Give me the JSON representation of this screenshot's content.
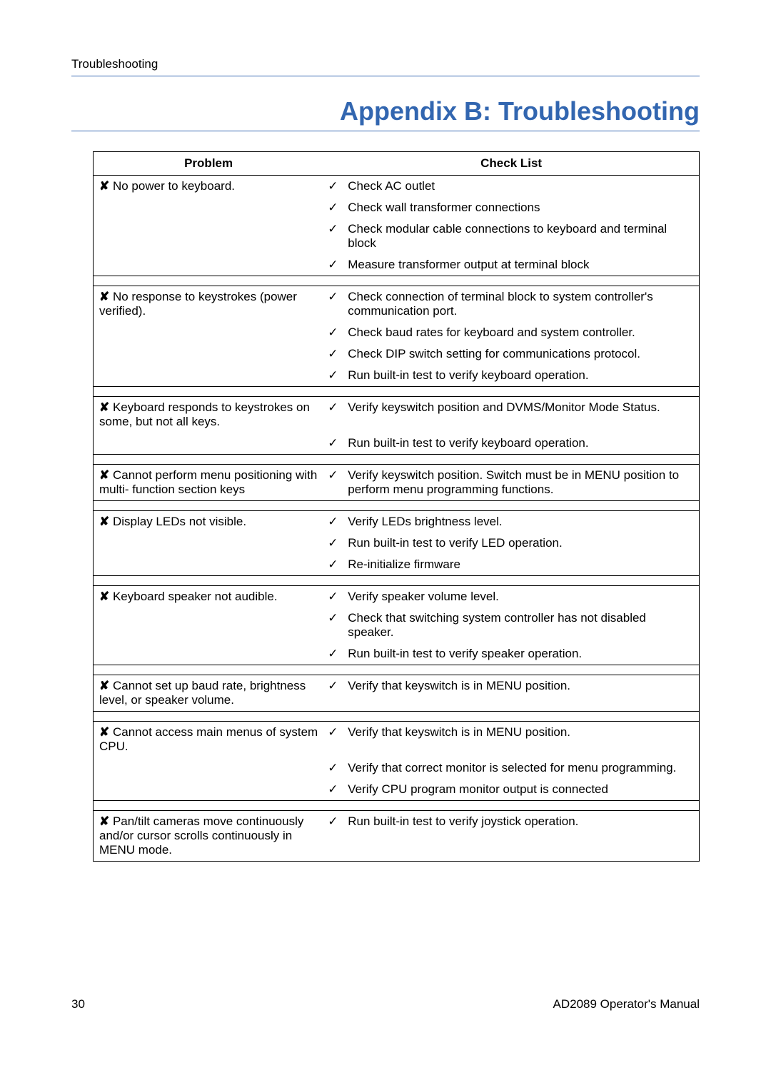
{
  "section_label": "Troubleshooting",
  "page_title": "Appendix B: Troubleshooting",
  "colors": {
    "title_color": "#3266b0",
    "rule_color": "#3a6ab4",
    "text_color": "#000000",
    "background": "#ffffff"
  },
  "table": {
    "headers": {
      "problem": "Problem",
      "checklist": "Check List"
    },
    "cross_glyph": "✘",
    "check_glyph": "✓",
    "groups": [
      {
        "problem": "No power to keyboard.",
        "checks": [
          "Check AC outlet",
          "Check wall transformer connections",
          "Check modular cable connections to keyboard and terminal block",
          "Measure transformer output at terminal block"
        ]
      },
      {
        "problem": "No response to keystrokes (power verified).",
        "checks": [
          "Check connection of terminal block to system controller's communication port.",
          "Check baud rates for keyboard and system controller.",
          "Check DIP switch setting for communications protocol.",
          "Run built-in test to verify keyboard operation."
        ]
      },
      {
        "problem": "Keyboard responds to keystrokes on some, but not all keys.",
        "checks": [
          "Verify keyswitch position and DVMS/Monitor Mode Status.",
          "Run built-in test to verify keyboard operation."
        ]
      },
      {
        "problem": "Cannot perform menu positioning with multi- function section keys",
        "checks": [
          "Verify keyswitch position. Switch must be in MENU position to perform menu programming functions."
        ]
      },
      {
        "problem": "Display LEDs not visible.",
        "checks": [
          "Verify LEDs brightness level.",
          "Run built-in test to verify LED operation.",
          "Re-initialize firmware"
        ]
      },
      {
        "problem": "Keyboard speaker not audible.",
        "checks": [
          "Verify speaker volume level.",
          "Check that switching system controller has not disabled speaker.",
          "Run built-in test to verify speaker operation."
        ]
      },
      {
        "problem": "Cannot set up baud rate, brightness level, or speaker volume.",
        "checks": [
          "Verify that keyswitch is in MENU position."
        ]
      },
      {
        "problem": "Cannot access main menus of system CPU.",
        "checks": [
          "Verify that keyswitch is in MENU position.",
          "Verify that correct monitor is selected for menu programming.",
          "Verify CPU program monitor output is connected"
        ]
      },
      {
        "problem": "Pan/tilt cameras move continuously and/or cursor scrolls continuously in MENU mode.",
        "checks": [
          "Run built-in test to verify joystick operation."
        ]
      }
    ]
  },
  "footer": {
    "page_number": "30",
    "doc_title": "AD2089 Operator's Manual"
  }
}
